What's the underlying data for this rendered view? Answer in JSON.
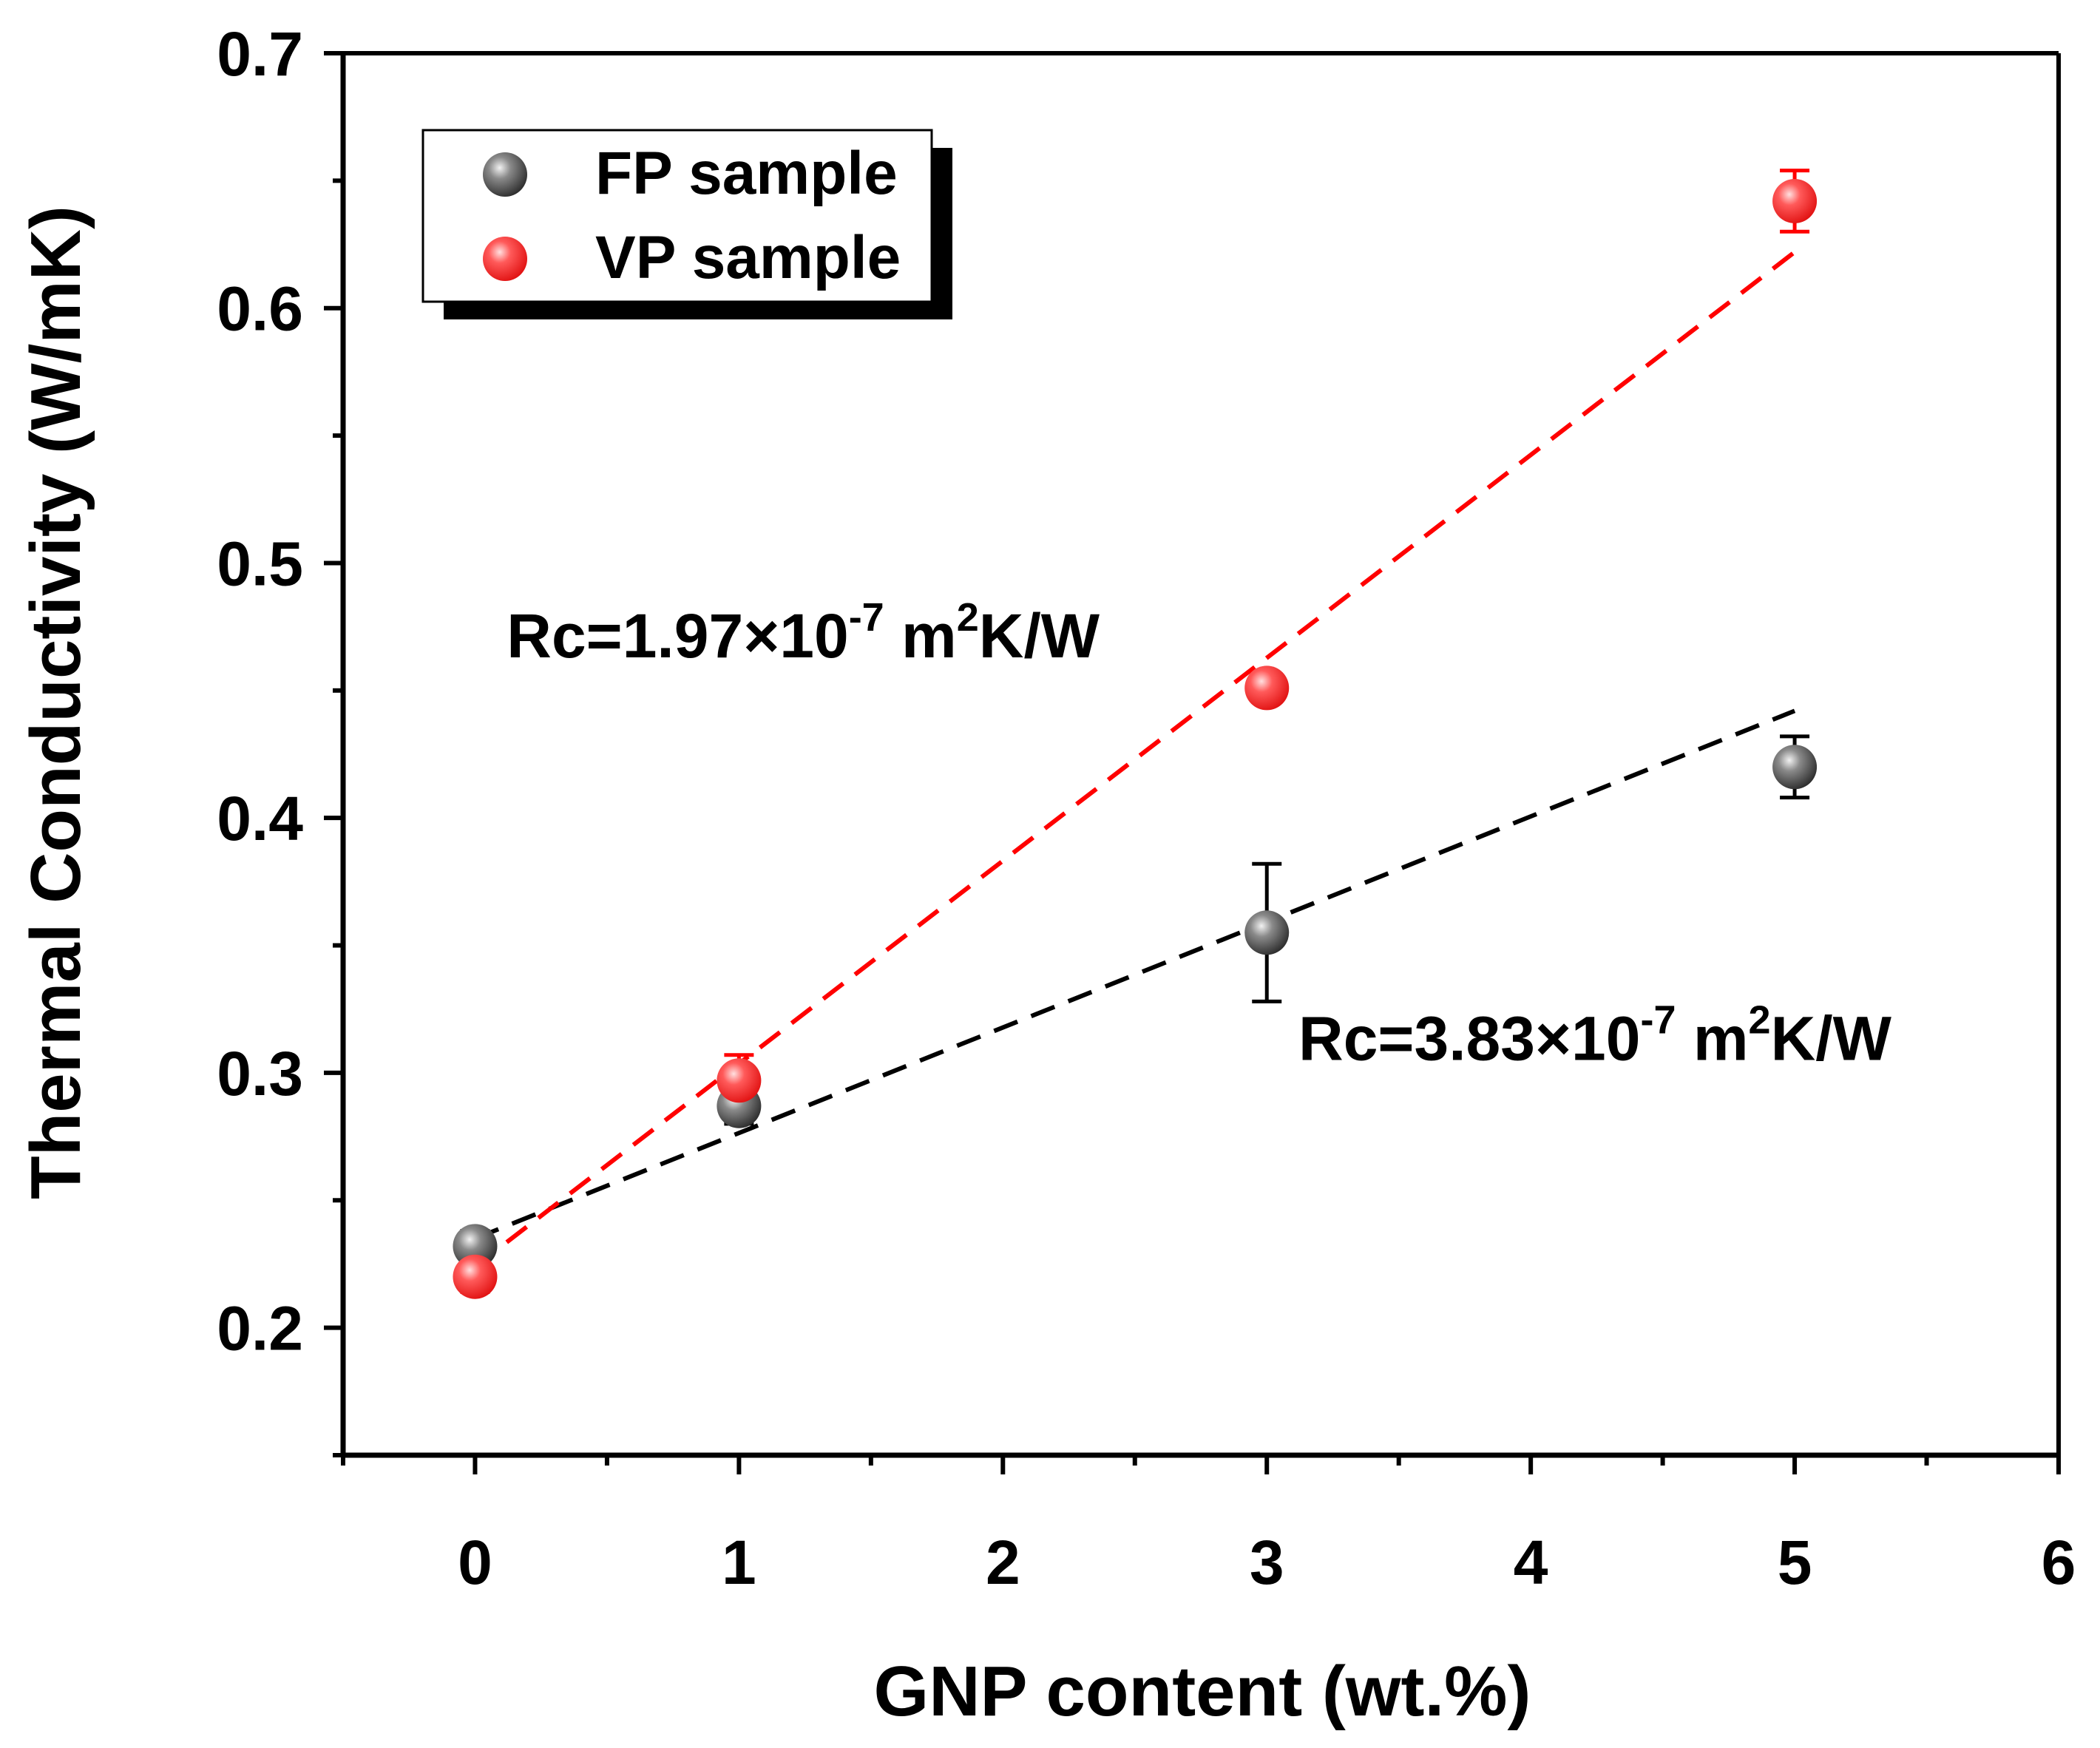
{
  "chart_data": {
    "type": "scatter",
    "xlabel": "GNP content (wt.%)",
    "ylabel": "Thermal Conductivity (W/mK)",
    "xlim": [
      -0.5,
      6
    ],
    "ylim": [
      0.15,
      0.7
    ],
    "x_ticks": [
      "0",
      "1",
      "2",
      "3",
      "4",
      "5",
      "6"
    ],
    "y_ticks": [
      "0.2",
      "0.3",
      "0.4",
      "0.5",
      "0.6",
      "0.7"
    ],
    "grid": false,
    "legend_position": "top-left",
    "series": [
      {
        "name": "FP sample",
        "color": "#444444",
        "x": [
          0,
          1,
          3,
          5
        ],
        "y": [
          0.232,
          0.287,
          0.355,
          0.42
        ],
        "err": [
          0.006,
          0.007,
          0.027,
          0.012
        ],
        "fit": {
          "x": [
            0,
            5
          ],
          "y": [
            0.235,
            0.442
          ],
          "style": "dashed",
          "color": "#000000"
        }
      },
      {
        "name": "VP sample",
        "color": "#ff3333",
        "x": [
          0,
          1,
          3,
          5
        ],
        "y": [
          0.22,
          0.297,
          0.451,
          0.642
        ],
        "err": [
          0.006,
          0.01,
          0.004,
          0.012
        ],
        "fit": {
          "x": [
            0,
            5
          ],
          "y": [
            0.224,
            0.622
          ],
          "style": "dashed",
          "color": "#ff0000"
        }
      }
    ],
    "annotations": [
      {
        "prefix": "Rc=1.97×10",
        "exponent": "-7",
        "unit_m": " m",
        "unit_exp": "2",
        "unit_rest": "K/W",
        "x": 0.12,
        "y": 0.463
      },
      {
        "prefix": "Rc=3.83×10",
        "exponent": "-7",
        "unit_m": " m",
        "unit_exp": "2",
        "unit_rest": "K/W",
        "x": 3.12,
        "y": 0.305
      }
    ]
  }
}
